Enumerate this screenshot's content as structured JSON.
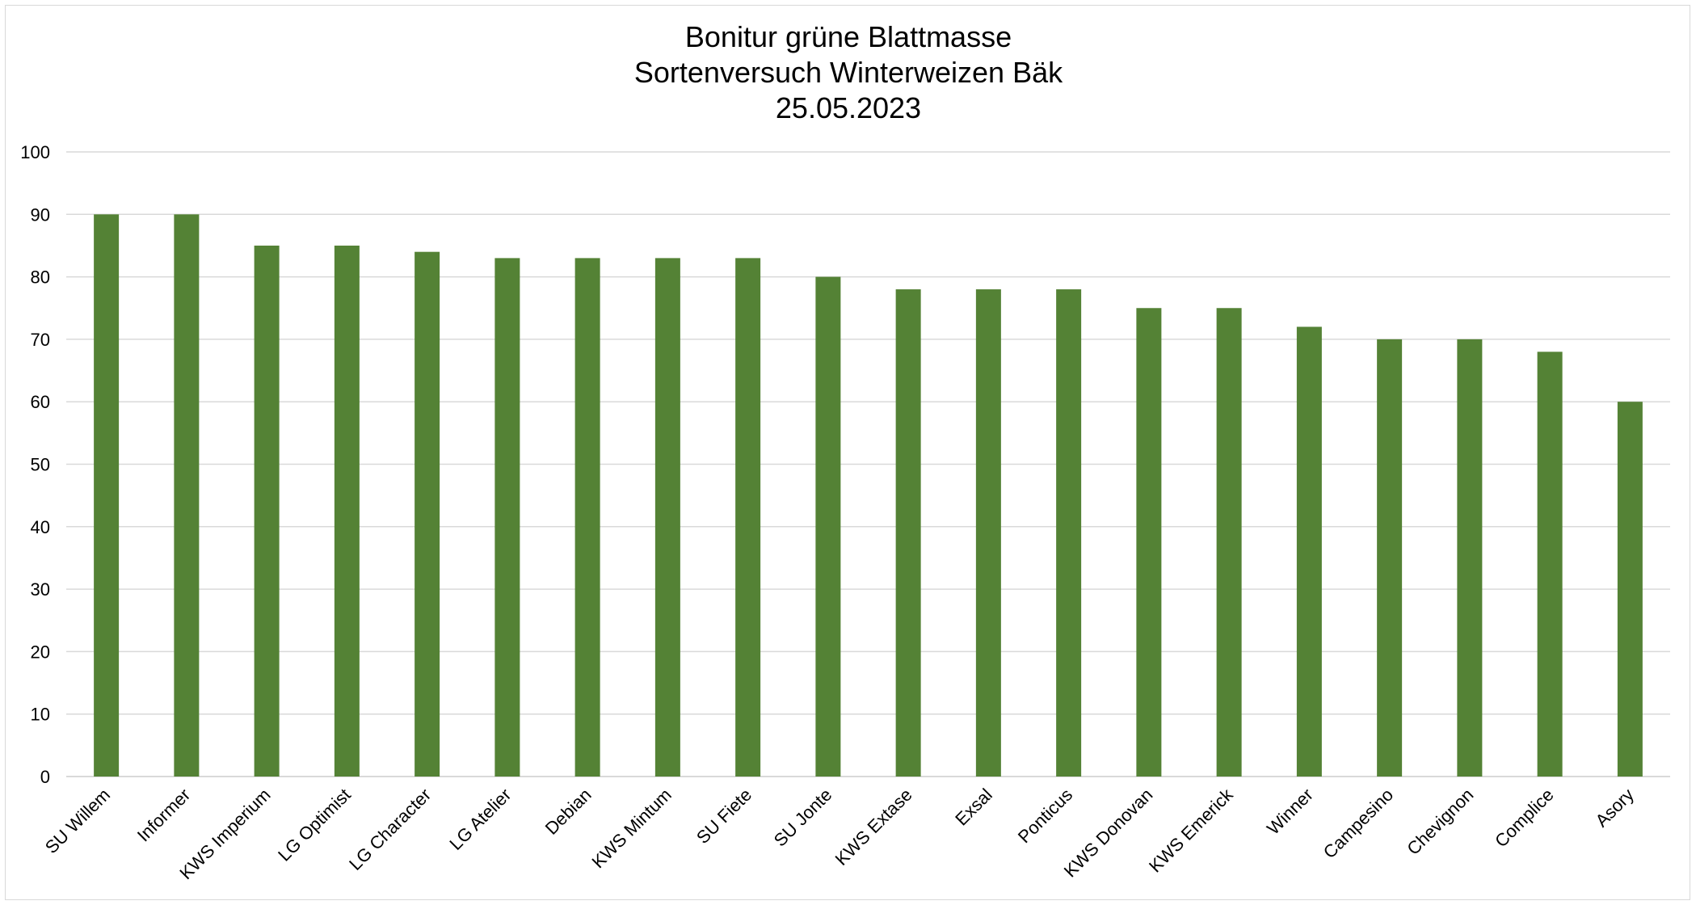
{
  "chart_data": {
    "type": "bar",
    "title_lines": [
      "Bonitur grüne Blattmasse",
      "Sortenversuch Winterweizen Bäk",
      "25.05.2023"
    ],
    "xlabel": "",
    "ylabel": "",
    "categories": [
      "SU Willem",
      "Informer",
      "KWS Imperium",
      "LG Optimist",
      "LG Character",
      "LG Atelier",
      "Debian",
      "KWS Mintum",
      "SU Fiete",
      "SU Jonte",
      "KWS Extase",
      "Exsal",
      "Ponticus",
      "KWS Donovan",
      "KWS Emerick",
      "Winner",
      "Campesino",
      "Chevignon",
      "Complice",
      "Asory"
    ],
    "values": [
      90,
      90,
      85,
      85,
      84,
      83,
      83,
      83,
      83,
      80,
      78,
      78,
      78,
      75,
      75,
      72,
      70,
      70,
      68,
      60
    ],
    "ylim": [
      0,
      100
    ],
    "yticks": [
      "0",
      "10",
      "20",
      "30",
      "40",
      "50",
      "60",
      "70",
      "80",
      "90",
      "100"
    ],
    "grid": true,
    "legend": "none",
    "bar_color": "#548235",
    "grid_color": "#d9d9d9"
  }
}
